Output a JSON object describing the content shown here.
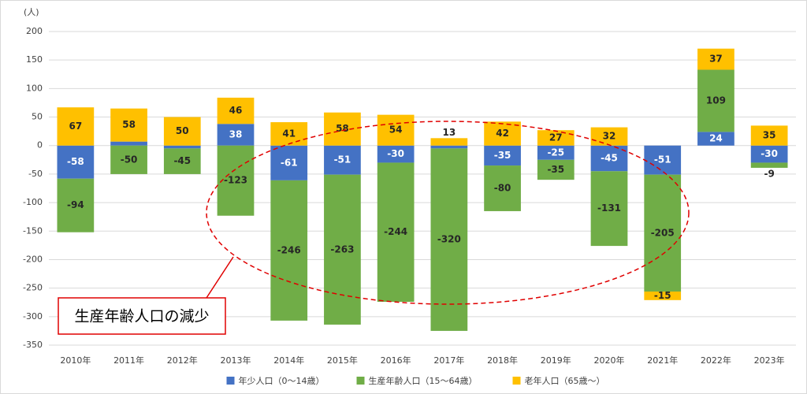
{
  "chart_data": {
    "type": "stacked_bar",
    "y_unit": "(人)",
    "categories": [
      "2010年",
      "2011年",
      "2012年",
      "2013年",
      "2014年",
      "2015年",
      "2016年",
      "2017年",
      "2018年",
      "2019年",
      "2020年",
      "2021年",
      "2022年",
      "2023年"
    ],
    "series": [
      {
        "name": "年少人口（0～14歳）",
        "color": "#4472c4",
        "values": [
          -58,
          7,
          -5,
          38,
          -61,
          -51,
          -30,
          -5,
          -35,
          -25,
          -45,
          -51,
          24,
          -30
        ]
      },
      {
        "name": "生産年齢人口（15～64歳）",
        "color": "#70ad47",
        "values": [
          -94,
          -50,
          -45,
          -123,
          -246,
          -263,
          -244,
          -320,
          -80,
          -35,
          -131,
          -205,
          109,
          -9
        ]
      },
      {
        "name": "老年人口（65歳～）",
        "color": "#ffc000",
        "values": [
          67,
          58,
          50,
          46,
          41,
          58,
          54,
          13,
          42,
          27,
          32,
          -15,
          37,
          35
        ]
      }
    ],
    "ylim": [
      -350,
      200
    ],
    "yticks": [
      -350,
      -300,
      -250,
      -200,
      -150,
      -100,
      -50,
      0,
      50,
      100,
      150,
      200
    ],
    "grid": true,
    "legend": "bottom",
    "annotation": "生産年齢人口の減少"
  }
}
